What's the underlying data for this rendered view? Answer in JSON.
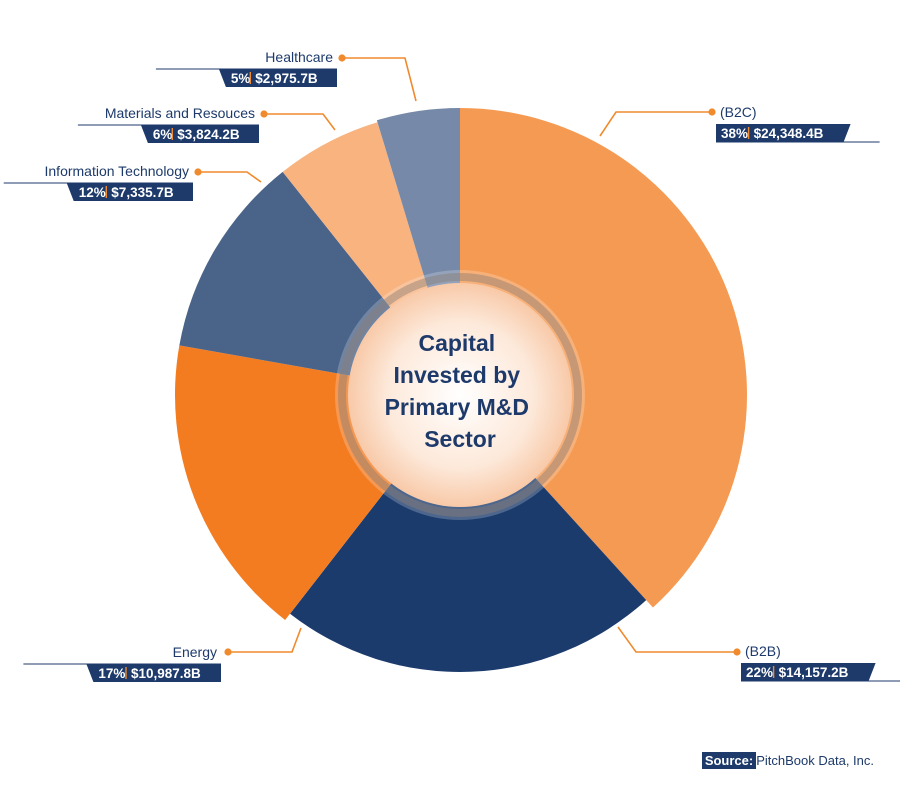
{
  "chart_data": {
    "type": "pie",
    "title": "Capital Invested by Primary M&D Sector",
    "title_lines": [
      "Capital",
      "Invested by",
      "Primary M&D",
      "Sector"
    ],
    "slices": [
      {
        "label": "(B2C)",
        "percent": 38,
        "percent_text": "38%",
        "value_text": "$24,348.4B",
        "value": 24348.4,
        "color": "#f59a52"
      },
      {
        "label": "(B2B)",
        "percent": 22,
        "percent_text": "22%",
        "value_text": "$14,157.2B",
        "value": 14157.2,
        "color": "#1c3b6d"
      },
      {
        "label": "Energy",
        "percent": 17,
        "percent_text": "17%",
        "value_text": "$10,987.8B",
        "value": 10987.8,
        "color": "#f47c20"
      },
      {
        "label": "Information Technology",
        "percent": 12,
        "percent_text": "12%",
        "value_text": "$7,335.7B",
        "value": 7335.7,
        "color": "#4a6389"
      },
      {
        "label": "Materials and Resouces",
        "percent": 6,
        "percent_text": "6%",
        "value_text": "$3,824.2B",
        "value": 3824.2,
        "color": "#f8b37f"
      },
      {
        "label": "Healthcare",
        "percent": 5,
        "percent_text": "5%",
        "value_text": "$2,975.7B",
        "value": 2975.7,
        "color": "#7689a8"
      }
    ]
  },
  "colors": {
    "navy": "#1d3a6b",
    "leader_orange": "#f08a2c"
  },
  "source": {
    "key": "Source:",
    "text": "PitchBook Data, Inc."
  }
}
